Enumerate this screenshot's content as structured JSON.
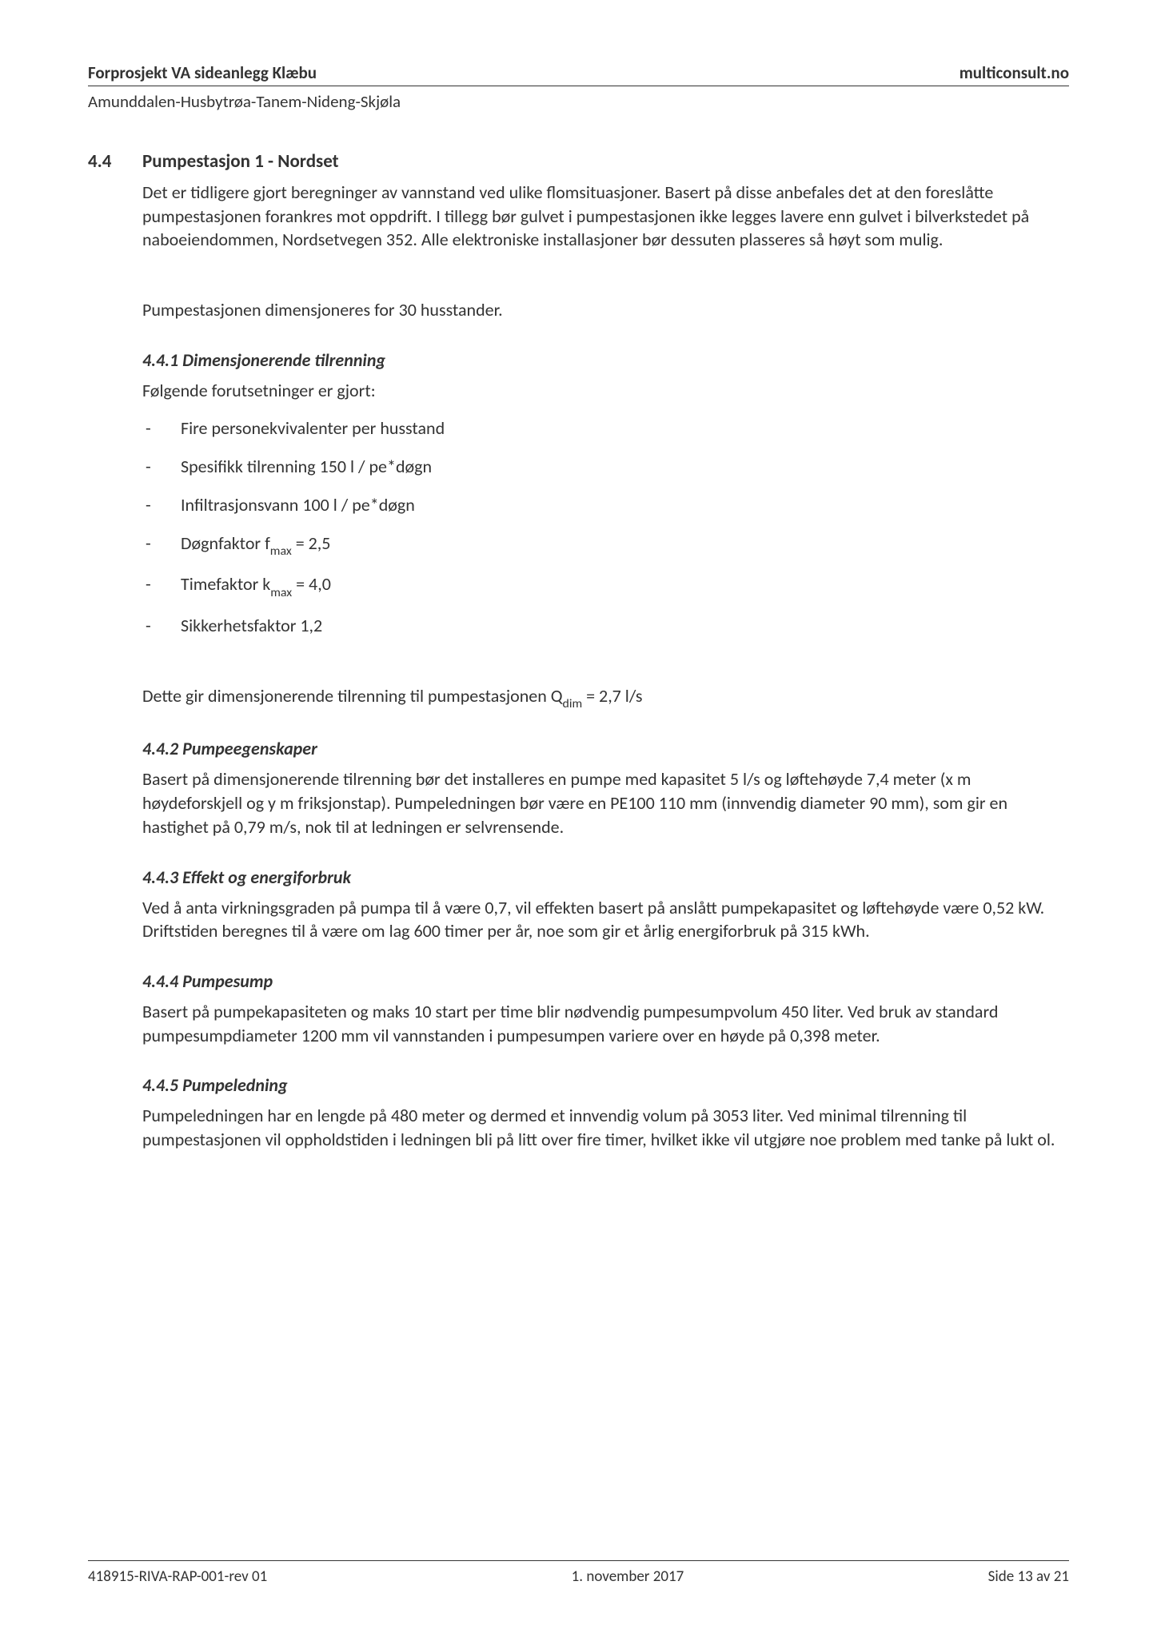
{
  "header": {
    "title_left": "Forprosjekt VA sideanlegg Klæbu",
    "title_right": "multiconsult.no",
    "subtitle": "Amunddalen-Husbytrøa-Tanem-Nideng-Skjøla"
  },
  "section": {
    "number": "4.4",
    "title": "Pumpestasjon 1 - Nordset",
    "intro_para": "Det er tidligere gjort beregninger av vannstand ved ulike flomsituasjoner. Basert på disse anbefales det at den foreslåtte pumpestasjonen forankres mot oppdrift. I tillegg bør gulvet i pumpestasjonen ikke legges lavere enn gulvet i bilverkstedet på naboeiendommen, Nordsetvegen 352. Alle elektroniske installasjoner bør dessuten plasseres så høyt som mulig.",
    "dim_para": "Pumpestasjonen dimensjoneres for 30 husstander."
  },
  "s441": {
    "title": "4.4.1  Dimensjonerende tilrenning",
    "intro": "Følgende forutsetninger er gjort:",
    "items": {
      "i0": "Fire personekvivalenter per husstand",
      "i1": "Spesifikk tilrenning 150 l / pe*døgn",
      "i2": "Infiltrasjonsvann 100 l / pe*døgn",
      "i3_pre": "Døgnfaktor f",
      "i3_sub": "max",
      "i3_post": " = 2,5",
      "i4_pre": "Timefaktor k",
      "i4_sub": "max",
      "i4_post": " = 4,0",
      "i5": "Sikkerhetsfaktor 1,2"
    },
    "result_pre": "Dette gir dimensjonerende tilrenning til pumpestasjonen Q",
    "result_sub": "dim",
    "result_post": " = 2,7 l/s"
  },
  "s442": {
    "title": "4.4.2  Pumpeegenskaper",
    "para": "Basert på dimensjonerende tilrenning bør det installeres en pumpe med kapasitet 5 l/s og løftehøyde 7,4 meter (x m høydeforskjell og y m friksjonstap). Pumpeledningen bør være en PE100 110 mm (innvendig diameter 90 mm), som gir en hastighet på 0,79 m/s, nok til at ledningen er selvrensende."
  },
  "s443": {
    "title": "4.4.3  Effekt og energiforbruk",
    "para": "Ved å anta virkningsgraden på pumpa til å være 0,7, vil effekten basert på anslått pumpekapasitet og løftehøyde være 0,52 kW. Driftstiden beregnes til å være om lag 600 timer per år, noe som gir et årlig energiforbruk på 315 kWh."
  },
  "s444": {
    "title": "4.4.4  Pumpesump",
    "para": "Basert på pumpekapasiteten og maks 10 start per time blir nødvendig pumpesumpvolum 450 liter. Ved bruk av standard pumpesumpdiameter 1200 mm vil vannstanden i pumpesumpen variere over en høyde på 0,398 meter."
  },
  "s445": {
    "title": "4.4.5  Pumpeledning",
    "para": "Pumpeledningen har en lengde på 480 meter og dermed et innvendig volum på 3053 liter. Ved minimal tilrenning til pumpestasjonen vil oppholdstiden i ledningen bli på litt over fire timer, hvilket ikke vil utgjøre noe problem med tanke på lukt ol."
  },
  "footer": {
    "doc_ref": "418915-RIVA-RAP-001-rev 01",
    "date": "1. november 2017",
    "page": "Side 13 av 21"
  }
}
